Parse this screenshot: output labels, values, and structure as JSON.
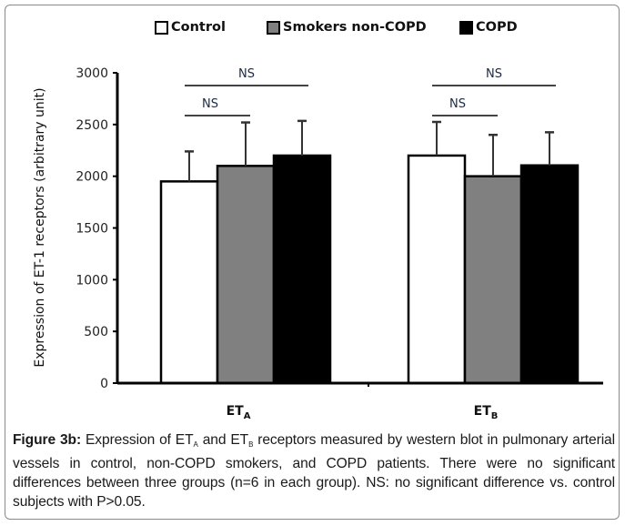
{
  "chart_data": {
    "type": "bar",
    "title": "",
    "xlabel": "",
    "ylabel": "Expression of ET-1 receptors (arbitrary unit)",
    "ylim": [
      0,
      3000
    ],
    "yticks": [
      0,
      500,
      1000,
      1500,
      2000,
      2500,
      3000
    ],
    "ytick_labels": [
      "0",
      "500",
      "1000",
      "1500",
      "2000",
      "2500",
      "3000"
    ],
    "categories": [
      {
        "main": "ET",
        "sub": "A"
      },
      {
        "main": "ET",
        "sub": "B"
      }
    ],
    "series": [
      {
        "name": "Control",
        "color": "#ffffff",
        "values": [
          1950,
          2200
        ],
        "error_upper": [
          2240,
          2525
        ]
      },
      {
        "name": "Smokers non-COPD",
        "color": "#808080",
        "values": [
          2100,
          2000
        ],
        "error_upper": [
          2520,
          2400
        ]
      },
      {
        "name": "COPD",
        "color": "#000000",
        "values": [
          2200,
          2105
        ],
        "error_upper": [
          2535,
          2425
        ]
      }
    ],
    "legend_position": "top-center",
    "grid": false,
    "annotations": [
      {
        "group": 0,
        "from_series": 0,
        "to_series": 1,
        "label": "NS",
        "level": 1
      },
      {
        "group": 0,
        "from_series": 0,
        "to_series": 2,
        "label": "NS",
        "level": 2
      },
      {
        "group": 1,
        "from_series": 0,
        "to_series": 1,
        "label": "NS",
        "level": 1
      },
      {
        "group": 1,
        "from_series": 0,
        "to_series": 2,
        "label": "NS",
        "level": 2
      }
    ]
  },
  "caption": {
    "label": "Figure 3b:",
    "text_1": " Expression of ET",
    "sub_1": "A",
    "text_2": " and ET",
    "sub_2": "B",
    "text_3": " receptors measured by western blot in pulmonary arterial vessels in control, non-COPD smokers, and COPD patients.  There were no significant differences between three groups (n=6 in each group). NS: no significant difference vs. control subjects with P>0.05."
  }
}
